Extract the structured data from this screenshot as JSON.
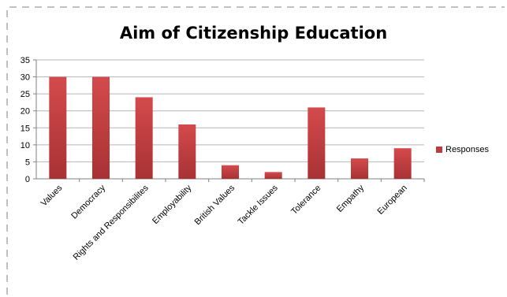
{
  "chart_data": {
    "type": "bar",
    "title": "Aim of Citizenship Education",
    "categories": [
      "Values",
      "Democracy",
      "Rights and Responsibilites",
      "Employability",
      "British Values",
      "Tackle Issues",
      "Tolerance",
      "Empathy",
      "European"
    ],
    "series": [
      {
        "name": "Responses",
        "values": [
          30,
          30,
          24,
          16,
          4,
          2,
          21,
          6,
          9
        ]
      }
    ],
    "y_ticks": [
      "0",
      "5",
      "10",
      "15",
      "20",
      "25",
      "30",
      "35"
    ],
    "ylim": [
      0,
      35
    ],
    "grid": true,
    "legend": "right",
    "colors": {
      "bar": "#c0393b",
      "bar_dark": "#9a2b2d",
      "grid": "#b4b4b4",
      "border": "#808080"
    }
  }
}
